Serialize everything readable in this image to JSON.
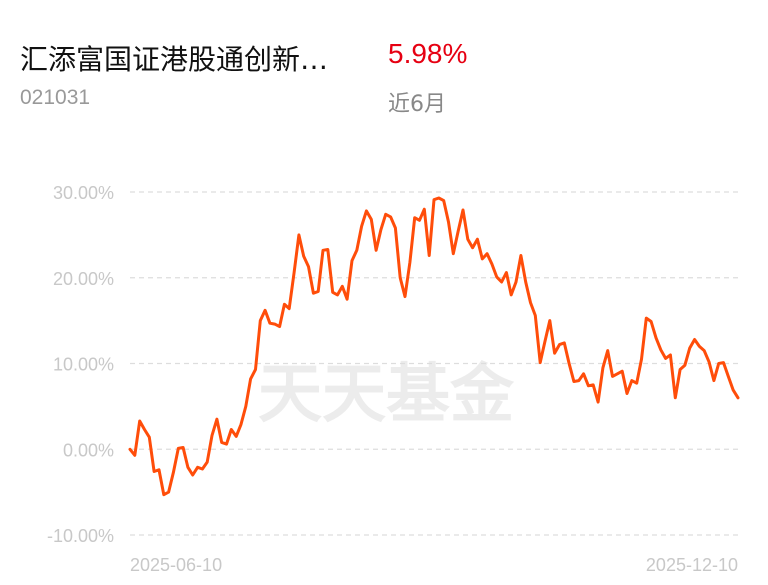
{
  "header": {
    "fund_name": "汇添富国证港股通创新…",
    "return": "5.98%",
    "code": "021031",
    "period": "近6月"
  },
  "watermark": "天天基金",
  "colors": {
    "line": "#ff4d0a",
    "return": "#e60012",
    "grid": "#dddddd"
  },
  "chart_data": {
    "type": "line",
    "title": "",
    "xlabel": "",
    "ylabel": "",
    "ylim": [
      -10,
      30
    ],
    "yticks": [
      30,
      20,
      10,
      0,
      -10
    ],
    "ytick_labels": [
      "30.00%",
      "20.00%",
      "10.00%",
      "0.00%",
      "-10.00%"
    ],
    "xtick_labels": [
      "2025-06-10",
      "2025-12-10"
    ],
    "grid": true,
    "series": [
      {
        "name": "",
        "values": [
          0.0,
          -0.7,
          3.3,
          2.3,
          1.4,
          -2.6,
          -2.4,
          -5.3,
          -5.0,
          -2.7,
          0.1,
          0.2,
          -2.1,
          -3.0,
          -2.1,
          -2.3,
          -1.5,
          1.6,
          3.5,
          0.8,
          0.6,
          2.3,
          1.5,
          2.9,
          5.0,
          8.2,
          9.3,
          15.0,
          16.2,
          14.7,
          14.6,
          14.3,
          16.9,
          16.4,
          20.6,
          25.0,
          22.5,
          21.3,
          18.2,
          18.4,
          23.2,
          23.3,
          18.3,
          18.0,
          19.0,
          17.5,
          22.0,
          23.2,
          26.0,
          27.8,
          26.8,
          23.2,
          25.6,
          27.4,
          27.1,
          25.8,
          20.0,
          17.8,
          21.8,
          27.0,
          26.7,
          28.0,
          22.6,
          29.1,
          29.3,
          29.0,
          26.5,
          22.8,
          25.4,
          27.9,
          24.5,
          23.5,
          24.5,
          22.2,
          22.8,
          21.6,
          20.1,
          19.5,
          20.6,
          18.0,
          19.5,
          22.6,
          19.5,
          17.1,
          15.6,
          10.1,
          12.6,
          15.0,
          11.2,
          12.2,
          12.4,
          10.0,
          7.9,
          8.0,
          8.8,
          7.4,
          7.5,
          5.5,
          9.5,
          11.5,
          8.5,
          8.8,
          9.1,
          6.5,
          8.0,
          7.7,
          10.5,
          15.3,
          14.9,
          13.0,
          11.6,
          10.6,
          11.0,
          6.0,
          9.3,
          9.8,
          11.8,
          12.8,
          12.0,
          11.5,
          10.2,
          8.0,
          10.0,
          10.1,
          8.5,
          6.9,
          6.0
        ]
      }
    ]
  }
}
